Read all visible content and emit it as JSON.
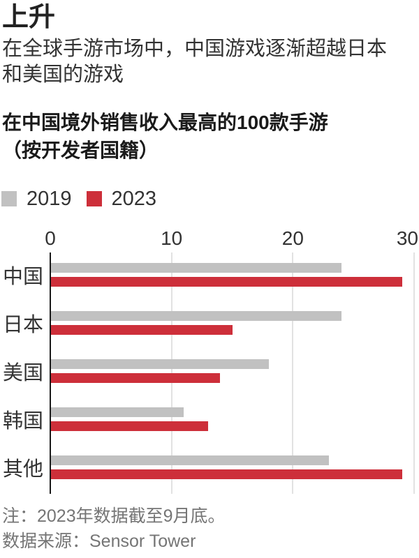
{
  "title": "上升",
  "subtitle": {
    "line1": "在全球手游市场中，中国游戏逐渐超越日本",
    "line2": "和美国的游戏"
  },
  "chart_heading": {
    "line1": "在中国境外销售收入最高的100款手游",
    "line2": "（按开发者国籍）"
  },
  "chart_data": {
    "type": "bar",
    "orientation": "horizontal",
    "title": "在中国境外销售收入最高的100款手游（按开发者国籍）",
    "categories": [
      "中国",
      "日本",
      "美国",
      "韩国",
      "其他"
    ],
    "series": [
      {
        "name": "2019",
        "color": "#c1c1c1",
        "values": [
          24,
          24,
          18,
          11,
          23
        ]
      },
      {
        "name": "2023",
        "color": "#cd2f3a",
        "values": [
          29,
          15,
          14,
          13,
          29
        ]
      }
    ],
    "xlim": [
      0,
      30
    ],
    "xticks": [
      0,
      10,
      20,
      30
    ],
    "grid": true,
    "legend_position": "top",
    "xlabel": "",
    "ylabel": ""
  },
  "notes": {
    "line1": "注：2023年数据截至9月底。",
    "line2": "数据来源：Sensor Tower"
  },
  "colors": {
    "bar_2019": "#c1c1c1",
    "bar_2023": "#cd2f3a",
    "axis_line": "#1a1a1a",
    "gridline": "#e2e2e2",
    "heading_text": "#1a1a1a",
    "body_text": "#333333",
    "note_text": "#757575"
  }
}
